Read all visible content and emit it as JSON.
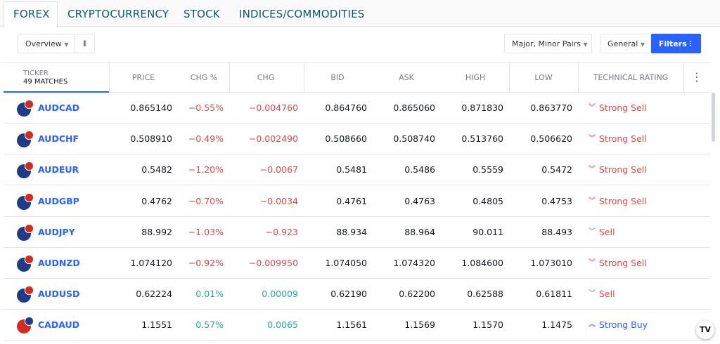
{
  "tabs": [
    "FOREX",
    "CRYPTOCURRENCY",
    "STOCK",
    "INDICES/COMMODITIES"
  ],
  "toolbar": {
    "view": "Overview",
    "pairs": "Major, Minor Pairs",
    "column_set": "General",
    "filters": "Filters"
  },
  "table": {
    "ticker_header": "TICKER",
    "matches": "49 MATCHES",
    "columns": [
      "PRICE",
      "CHG %",
      "CHG",
      "BID",
      "ASK",
      "HIGH",
      "LOW",
      "TECHNICAL RATING"
    ],
    "rows": [
      [
        "AUDCAD",
        "0.865140",
        "−0.55%",
        "−0.004760",
        "0.864760",
        "0.865060",
        "0.871830",
        "0.863770",
        "Strong Sell"
      ],
      [
        "AUDCHF",
        "0.508910",
        "−0.49%",
        "−0.002490",
        "0.508660",
        "0.508740",
        "0.513760",
        "0.506620",
        "Strong Sell"
      ],
      [
        "AUDEUR",
        "0.5482",
        "−1.20%",
        "−0.0067",
        "0.5481",
        "0.5486",
        "0.5559",
        "0.5472",
        "Strong Sell"
      ],
      [
        "AUDGBP",
        "0.4762",
        "−0.70%",
        "−0.0034",
        "0.4761",
        "0.4763",
        "0.4805",
        "0.4753",
        "Strong Sell"
      ],
      [
        "AUDJPY",
        "88.992",
        "−1.03%",
        "−0.923",
        "88.934",
        "88.964",
        "90.011",
        "88.493",
        "Sell"
      ],
      [
        "AUDNZD",
        "1.074120",
        "−0.92%",
        "−0.009950",
        "1.074050",
        "1.074320",
        "1.084600",
        "1.073010",
        "Strong Sell"
      ],
      [
        "AUDUSD",
        "0.62224",
        "0.01%",
        "0.00009",
        "0.62190",
        "0.62200",
        "0.62588",
        "0.61811",
        "Sell"
      ],
      [
        "CADAUD",
        "1.1551",
        "0.57%",
        "0.0065",
        "1.1561",
        "1.1569",
        "1.1570",
        "1.1475",
        "Strong Buy"
      ]
    ]
  }
}
